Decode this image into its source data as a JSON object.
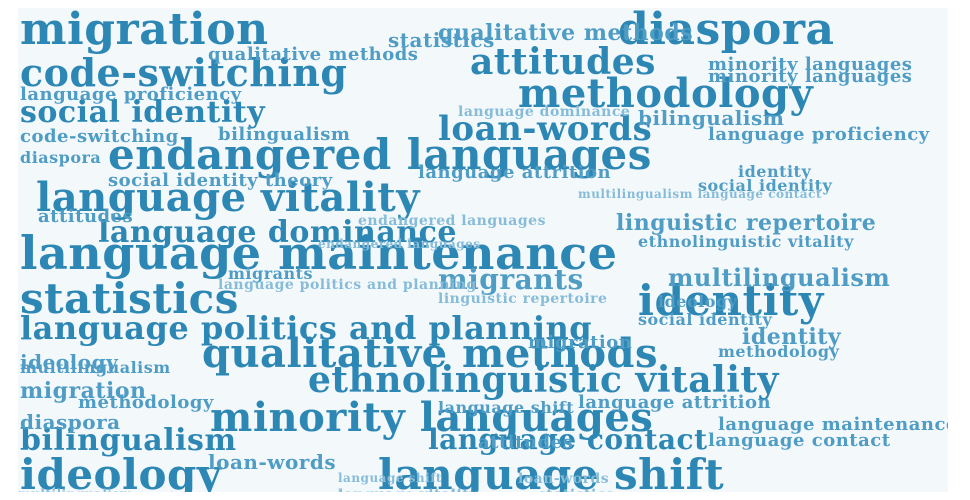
{
  "palette": {
    "dark": "#2d87b4",
    "mid": "#4f9cc4",
    "light": "#86bcd8",
    "background": "#f3f8fb"
  },
  "words": [
    "migration",
    "diaspora",
    "code-switching",
    "attitudes",
    "methodology",
    "social identity",
    "loan-words",
    "endangered languages",
    "language vitality",
    "language dominance",
    "language maintenance",
    "statistics",
    "identity",
    "language politics and planning",
    "qualitative methods",
    "ethnolinguistic vitality",
    "minority languages",
    "bilingualism",
    "language contact",
    "ideology",
    "language shift",
    "migrants",
    "multilingualism",
    "linguistic repertoire",
    "language proficiency",
    "social identity theory",
    "language attrition",
    "qualitative methods",
    "minority languages",
    "language proficiency",
    "language contact",
    "bilingualism",
    "multilingualism",
    "ideology",
    "language shift",
    "attitudes",
    "identity",
    "migrants",
    "ethnolinguistic vitality",
    "language attrition",
    "diaspora",
    "language maintenance",
    "social identity",
    "methodology",
    "loan-words",
    "code-switching",
    "migration",
    "statistics",
    "language vitality",
    "language politics and planning",
    "linguistic repertoire",
    "language dominance",
    "multilingualism language contact",
    "endangered languages"
  ]
}
